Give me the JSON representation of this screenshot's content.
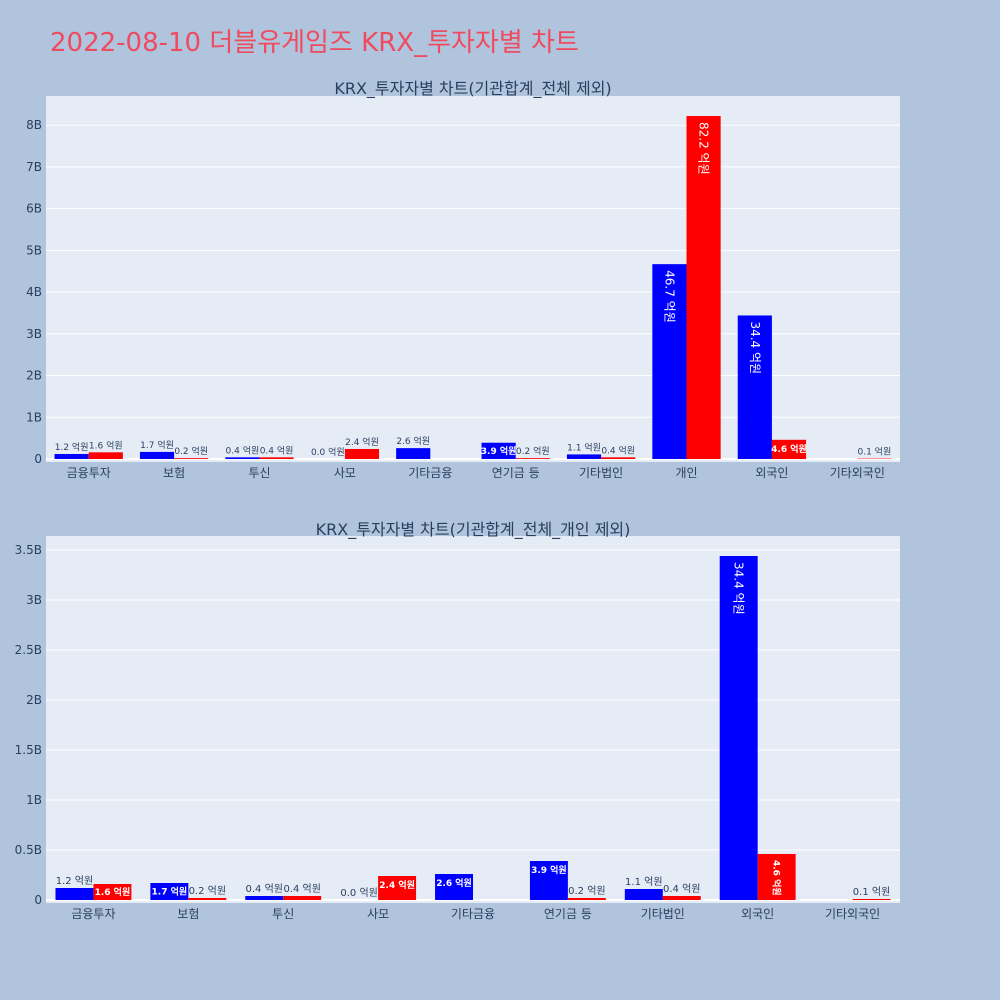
{
  "page": {
    "title": "2022-08-10 더블유게임즈 KRX_투자자별 차트",
    "colors": {
      "background": "#b0c4de",
      "plot_bg": "#e5ecf6",
      "title": "#ef4b5f",
      "buy": "#0000ff",
      "sell": "#ff0000"
    }
  },
  "chart_data": [
    {
      "type": "bar",
      "title": "KRX_투자자별 차트(기관합계_전체 제외)",
      "categories": [
        "금융투자",
        "보험",
        "투신",
        "사모",
        "기타금융",
        "연기금 등",
        "기타법인",
        "개인",
        "외국인",
        "기타외국인"
      ],
      "series": [
        {
          "color": "#0000ff",
          "values": [
            120000000,
            170000000,
            40000000,
            0,
            260000000,
            390000000,
            110000000,
            4670000000,
            3440000000,
            0
          ],
          "labels": [
            "1.2 억원",
            "1.7 억원",
            "0.4 억원",
            "0.0 억원",
            "2.6 억원",
            "3.9 억원",
            "1.1 억원",
            "46.7 억원",
            "34.4 억원",
            ""
          ]
        },
        {
          "color": "#ff0000",
          "values": [
            160000000,
            20000000,
            40000000,
            240000000,
            0,
            20000000,
            40000000,
            8220000000,
            460000000,
            10000000
          ],
          "labels": [
            "1.6 억원",
            "0.2 억원",
            "0.4 억원",
            "2.4 억원",
            "",
            "0.2 억원",
            "0.4 억원",
            "82.2 억원",
            "4.6 억원",
            "0.1 억원"
          ]
        }
      ],
      "y_ticks": [
        "0",
        "1B",
        "2B",
        "3B",
        "4B",
        "5B",
        "6B",
        "7B",
        "8B"
      ],
      "ylim": [
        0,
        8700000000
      ],
      "grid": true
    },
    {
      "type": "bar",
      "title": "KRX_투자자별 차트(기관합계_전체_개인 제외)",
      "categories": [
        "금융투자",
        "보험",
        "투신",
        "사모",
        "기타금융",
        "연기금 등",
        "기타법인",
        "외국인",
        "기타외국인"
      ],
      "series": [
        {
          "color": "#0000ff",
          "values": [
            120000000,
            170000000,
            40000000,
            0,
            260000000,
            390000000,
            110000000,
            3440000000,
            0
          ],
          "labels": [
            "1.2 억원",
            "1.7 억원",
            "0.4 억원",
            "0.0 억원",
            "2.6 억원",
            "3.9 억원",
            "1.1 억원",
            "34.4 억원",
            ""
          ]
        },
        {
          "color": "#ff0000",
          "values": [
            160000000,
            20000000,
            40000000,
            240000000,
            0,
            20000000,
            40000000,
            460000000,
            10000000
          ],
          "labels": [
            "1.6 억원",
            "0.2 억원",
            "0.4 억원",
            "2.4 억원",
            "",
            "0.2 억원",
            "0.4 억원",
            "4.6 억원",
            "0.1 억원"
          ]
        }
      ],
      "y_ticks": [
        "0",
        "0.5B",
        "1B",
        "1.5B",
        "2B",
        "2.5B",
        "3B",
        "3.5B"
      ],
      "ylim": [
        0,
        3640000000
      ],
      "grid": true
    }
  ]
}
